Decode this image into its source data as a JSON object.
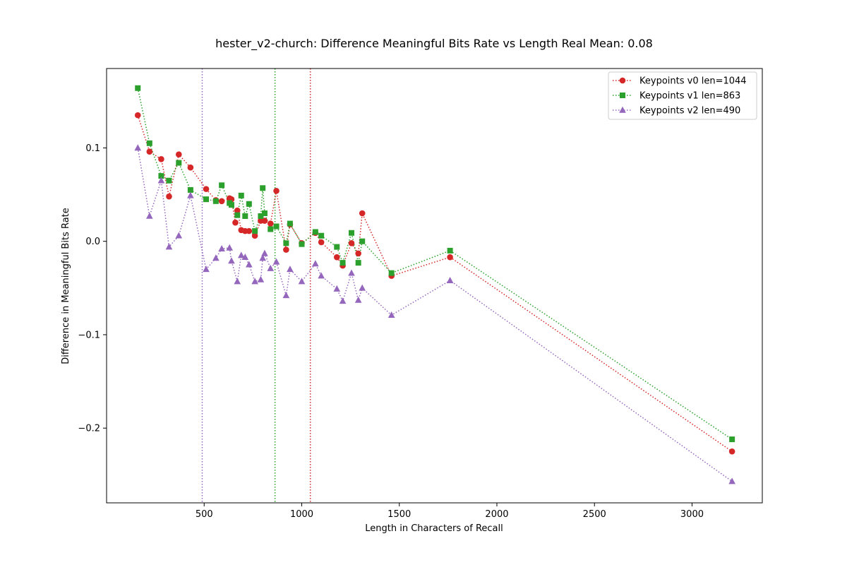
{
  "chart_data": {
    "type": "line",
    "title": "hester_v2-church: Difference Meaningful Bits Rate vs Length Real Mean: 0.08",
    "xlabel": "Length in Characters of Recall",
    "ylabel": "Difference in Meaningful Bits Rate",
    "xlim": [
      0,
      3360
    ],
    "ylim": [
      -0.28,
      0.185
    ],
    "xticks": [
      500,
      1000,
      1500,
      2000,
      2500,
      3000
    ],
    "xtick_labels": [
      "500",
      "1000",
      "1500",
      "2000",
      "2500",
      "3000"
    ],
    "yticks": [
      -0.2,
      -0.1,
      0.0,
      0.1
    ],
    "ytick_labels": [
      "−0.2",
      "−0.1",
      "0.0",
      "0.1"
    ],
    "grid": false,
    "legend_position": "top-right",
    "series": [
      {
        "name": "Keypoints v0 len=1044",
        "color": "#d62728",
        "marker": "circle",
        "line_style": "dotted",
        "vline": 1044,
        "x": [
          160,
          220,
          280,
          320,
          370,
          430,
          510,
          560,
          590,
          630,
          640,
          660,
          670,
          690,
          710,
          730,
          760,
          790,
          810,
          840,
          870,
          920,
          940,
          1000,
          1070,
          1100,
          1180,
          1210,
          1255,
          1290,
          1310,
          1460,
          1760,
          3205
        ],
        "y": [
          0.135,
          0.096,
          0.088,
          0.048,
          0.093,
          0.079,
          0.056,
          0.044,
          0.043,
          0.046,
          0.045,
          0.02,
          0.033,
          0.012,
          0.011,
          0.011,
          0.006,
          0.022,
          0.022,
          0.019,
          0.054,
          -0.009,
          0.018,
          -0.002,
          0.009,
          -0.001,
          -0.017,
          -0.026,
          -0.002,
          -0.013,
          0.03,
          -0.037,
          -0.017,
          -0.225
        ]
      },
      {
        "name": "Keypoints v1 len=863",
        "color": "#2ca02c",
        "marker": "square",
        "line_style": "dotted",
        "vline": 863,
        "x": [
          160,
          220,
          280,
          320,
          370,
          430,
          510,
          560,
          590,
          630,
          640,
          670,
          690,
          710,
          730,
          760,
          790,
          800,
          810,
          840,
          870,
          920,
          940,
          1000,
          1070,
          1100,
          1180,
          1210,
          1255,
          1290,
          1310,
          1460,
          1760,
          3205
        ],
        "y": [
          0.164,
          0.105,
          0.07,
          0.065,
          0.084,
          0.055,
          0.045,
          0.043,
          0.06,
          0.041,
          0.039,
          0.028,
          0.049,
          0.027,
          0.04,
          0.011,
          0.027,
          0.057,
          0.03,
          0.013,
          0.016,
          -0.002,
          0.019,
          -0.003,
          0.01,
          0.006,
          -0.006,
          -0.023,
          0.009,
          -0.023,
          0.0,
          -0.034,
          -0.01,
          -0.212
        ]
      },
      {
        "name": "Keypoints v2 len=490",
        "color": "#9467bd",
        "marker": "triangle",
        "line_style": "dotted",
        "vline": 490,
        "x": [
          160,
          220,
          280,
          320,
          370,
          430,
          510,
          560,
          590,
          630,
          640,
          670,
          690,
          710,
          730,
          760,
          790,
          800,
          810,
          840,
          870,
          920,
          940,
          1000,
          1070,
          1100,
          1180,
          1210,
          1255,
          1290,
          1310,
          1460,
          1760,
          3205
        ],
        "y": [
          0.1,
          0.027,
          0.065,
          -0.006,
          0.006,
          0.049,
          -0.03,
          -0.018,
          -0.008,
          -0.007,
          -0.021,
          -0.043,
          -0.015,
          -0.017,
          -0.025,
          -0.043,
          -0.041,
          -0.018,
          -0.013,
          -0.029,
          -0.022,
          -0.058,
          -0.03,
          -0.043,
          -0.024,
          -0.037,
          -0.051,
          -0.064,
          -0.034,
          -0.063,
          -0.05,
          -0.079,
          -0.042,
          -0.257
        ]
      }
    ]
  }
}
